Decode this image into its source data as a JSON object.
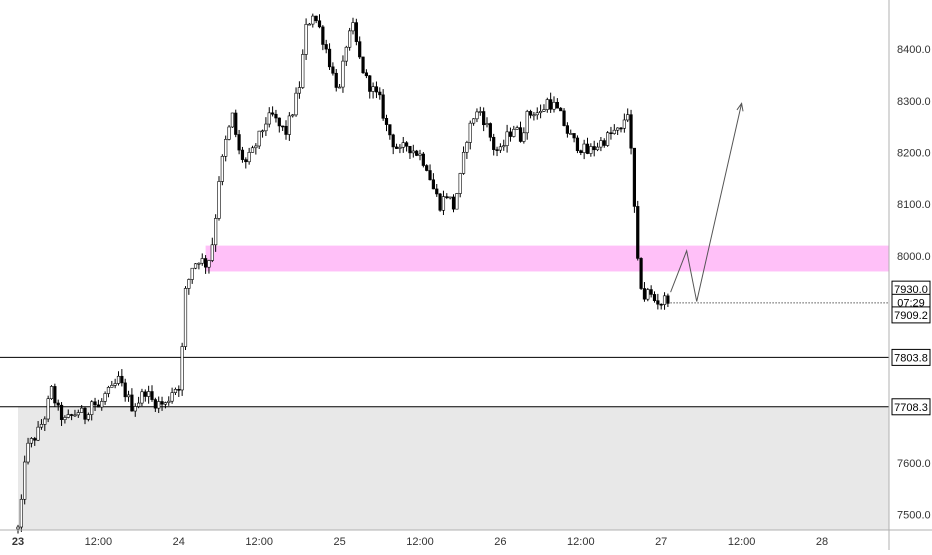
{
  "chart_data": {
    "type": "candlestick",
    "title": "",
    "xlabel": "",
    "ylabel": "",
    "ylim": [
      7470,
      8495
    ],
    "y_ticks": [
      7500,
      7600,
      7700,
      7800,
      7900,
      8000,
      8100,
      8200,
      8300,
      8400
    ],
    "y_tick_labels": [
      "7500.0",
      "7600.0",
      "7700.0",
      "7800.0",
      "7900.0",
      "8000.0",
      "8100.0",
      "8200.0",
      "8300.0",
      "8400.0"
    ],
    "x_tick_labels": [
      "23",
      "12:00",
      "24",
      "12:00",
      "25",
      "12:00",
      "26",
      "12:00",
      "27",
      "12:00",
      "28"
    ],
    "x_ticks_hours": [
      0,
      12,
      24,
      36,
      48,
      60,
      72,
      84,
      96,
      108,
      120
    ],
    "bold_x_tick_labels": [
      "23"
    ],
    "grid": false,
    "price_path": [
      [
        0,
        7472
      ],
      [
        0.4,
        7490
      ],
      [
        0.8,
        7600
      ],
      [
        1.4,
        7628
      ],
      [
        2,
        7640
      ],
      [
        3,
        7660
      ],
      [
        4,
        7690
      ],
      [
        5,
        7740
      ],
      [
        6,
        7700
      ],
      [
        7,
        7680
      ],
      [
        8,
        7690
      ],
      [
        9,
        7700
      ],
      [
        10,
        7690
      ],
      [
        11,
        7720
      ],
      [
        12,
        7705
      ],
      [
        13,
        7730
      ],
      [
        14,
        7740
      ],
      [
        15,
        7760
      ],
      [
        16,
        7735
      ],
      [
        17,
        7710
      ],
      [
        18,
        7720
      ],
      [
        19,
        7740
      ],
      [
        20,
        7720
      ],
      [
        21,
        7715
      ],
      [
        22,
        7712
      ],
      [
        23,
        7740
      ],
      [
        24,
        7750
      ],
      [
        24.5,
        7820
      ],
      [
        25,
        7930
      ],
      [
        26,
        7980
      ],
      [
        27,
        7995
      ],
      [
        28,
        7985
      ],
      [
        28.7,
        8000
      ],
      [
        29.3,
        8050
      ],
      [
        30,
        8150
      ],
      [
        31,
        8220
      ],
      [
        32,
        8270
      ],
      [
        33,
        8200
      ],
      [
        34,
        8180
      ],
      [
        35,
        8200
      ],
      [
        36,
        8230
      ],
      [
        37,
        8260
      ],
      [
        38,
        8270
      ],
      [
        39,
        8250
      ],
      [
        40,
        8240
      ],
      [
        41,
        8280
      ],
      [
        42,
        8330
      ],
      [
        43,
        8440
      ],
      [
        44,
        8470
      ],
      [
        45,
        8440
      ],
      [
        46,
        8400
      ],
      [
        47,
        8350
      ],
      [
        48,
        8320
      ],
      [
        49,
        8410
      ],
      [
        50,
        8440
      ],
      [
        51,
        8380
      ],
      [
        52,
        8340
      ],
      [
        53,
        8320
      ],
      [
        54,
        8300
      ],
      [
        55,
        8250
      ],
      [
        56,
        8220
      ],
      [
        57,
        8200
      ],
      [
        58,
        8215
      ],
      [
        59,
        8205
      ],
      [
        60,
        8195
      ],
      [
        61,
        8175
      ],
      [
        62,
        8130
      ],
      [
        63,
        8100
      ],
      [
        64,
        8120
      ],
      [
        65,
        8095
      ],
      [
        66,
        8150
      ],
      [
        67,
        8230
      ],
      [
        68,
        8270
      ],
      [
        69,
        8280
      ],
      [
        70,
        8250
      ],
      [
        71,
        8210
      ],
      [
        72,
        8200
      ],
      [
        73,
        8230
      ],
      [
        74,
        8250
      ],
      [
        75,
        8230
      ],
      [
        76,
        8270
      ],
      [
        77,
        8280
      ],
      [
        78,
        8275
      ],
      [
        79,
        8300
      ],
      [
        80,
        8290
      ],
      [
        81,
        8270
      ],
      [
        82,
        8240
      ],
      [
        83,
        8220
      ],
      [
        84,
        8210
      ],
      [
        85,
        8200
      ],
      [
        86,
        8210
      ],
      [
        87,
        8220
      ],
      [
        88,
        8230
      ],
      [
        89,
        8240
      ],
      [
        90,
        8240
      ],
      [
        90.6,
        8270
      ],
      [
        91,
        8280
      ],
      [
        91.8,
        8150
      ],
      [
        92.3,
        8000
      ],
      [
        92.9,
        7950
      ],
      [
        93.5,
        7920
      ],
      [
        94,
        7930
      ],
      [
        95,
        7915
      ],
      [
        96,
        7910
      ],
      [
        97,
        7920
      ],
      [
        97.4,
        7930
      ]
    ],
    "zones": [
      {
        "name": "resistance-zone",
        "type": "rect",
        "y0": 7970,
        "y1": 8020,
        "x_start_hours": 28,
        "color": "#ffc0f8"
      },
      {
        "name": "lower-zone",
        "type": "rect",
        "y0": 7470,
        "y1": 7708.3,
        "x_start_hours": 0,
        "color": "#e8e8e8"
      }
    ],
    "horizontal_lines": [
      {
        "name": "level-line-upper",
        "value": 7803.8,
        "label": "7803.8",
        "style": "solid",
        "color": "#000000"
      },
      {
        "name": "level-line-lower",
        "value": 7708.3,
        "label": "7708.3",
        "style": "solid",
        "color": "#000000"
      },
      {
        "name": "current-price-line",
        "value": 7909.2,
        "label": "7909.2",
        "style": "dotted",
        "color": "#000000",
        "x_start_hours": 97.4
      }
    ],
    "price_labels": [
      {
        "name": "price-tag-7930",
        "value": 7930.0,
        "label": "7930.0"
      },
      {
        "name": "countdown-tag",
        "value": 7920.0,
        "label": "07:29"
      },
      {
        "name": "price-tag-7909",
        "value": 7909.2,
        "label": "7909.2"
      }
    ],
    "projection_path": [
      [
        97.4,
        7930
      ],
      [
        99.8,
        8010
      ],
      [
        101.3,
        7912
      ],
      [
        108,
        8295
      ]
    ],
    "colors": {
      "candle": "#000000",
      "axis_text": "#333333",
      "projection": "#555555"
    }
  }
}
